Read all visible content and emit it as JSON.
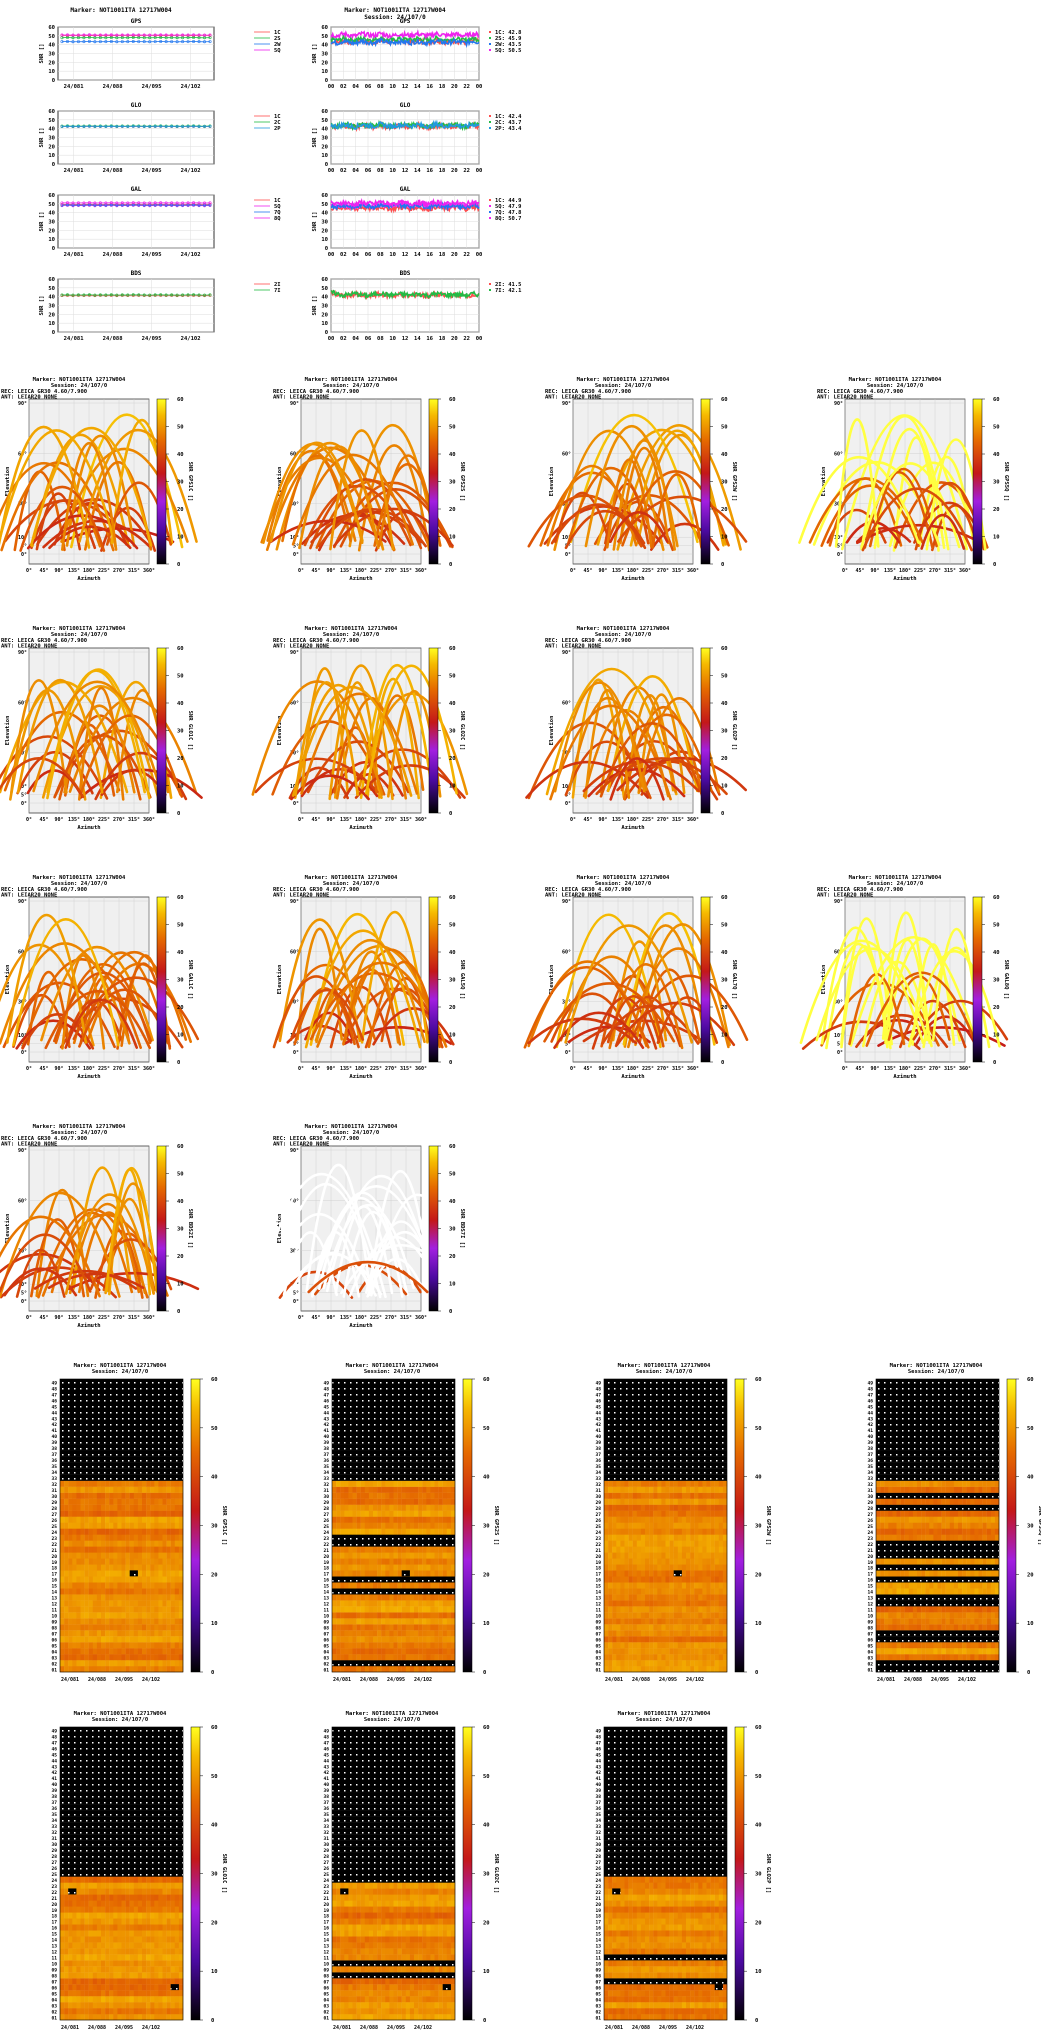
{
  "marker_title": "Marker: NOT1001ITA 12717W004",
  "session_title": "Session: 24/107/0",
  "receiver_line": "REC: LEICA GR30          4.60/7.900",
  "antenna_line": "ANT: LEIAR20          NONE",
  "ts_xticks": [
    "24/081",
    "24/088",
    "24/095",
    "24/102"
  ],
  "daily_xticks": [
    "00",
    "02",
    "04",
    "06",
    "08",
    "10",
    "12",
    "14",
    "16",
    "18",
    "20",
    "22",
    "00"
  ],
  "snr_label": "SNR []",
  "snr_yticks": [
    "0",
    "10",
    "20",
    "30",
    "40",
    "50",
    "60"
  ],
  "elev_yticks": [
    "90°",
    "60°",
    "30°",
    "10°",
    "5°",
    "0°"
  ],
  "az_xticks": [
    "0°",
    "45°",
    "90°",
    "135°",
    "180°",
    "225°",
    "270°",
    "315°",
    "360°"
  ],
  "az_label": "Azimuth",
  "elev_label": "Elevation",
  "cbar_ticks": [
    "0",
    "10",
    "20",
    "30",
    "40",
    "50",
    "60"
  ],
  "colors": {
    "c1C": "#ff4d4d",
    "c2S": "#22bb44",
    "c2W": "#2277ee",
    "c5Q": "#ee22ee",
    "c2C": "#22bb44",
    "c2P": "#2299dd",
    "c7Q": "#2277ee",
    "c2I": "#ff4d4d",
    "c7I": "#22bb44"
  },
  "chart_data": [
    {
      "type": "line",
      "title": "GPS",
      "kind": "timeseries",
      "ylim": [
        0,
        60
      ],
      "series": [
        {
          "name": "1C",
          "values": [
            50.5,
            50.3,
            50.6,
            50.4,
            50.5,
            50.2,
            50.6,
            50.4,
            50.5,
            50.3,
            50.6,
            50.4,
            50.5,
            50.3,
            50.4,
            50.5,
            50.6,
            50.4,
            50.3,
            50.5,
            50.4,
            50.6,
            50.5,
            50.4,
            50.3,
            50.5,
            50.6,
            50.4
          ]
        },
        {
          "name": "2S",
          "values": [
            47.9,
            48.1,
            47.8,
            48.0,
            47.9,
            48.2,
            47.8,
            48.0,
            47.9,
            48.1,
            47.8,
            48.0,
            47.9,
            48.1,
            48.0,
            47.9,
            47.8,
            48.0,
            48.1,
            47.9,
            48.0,
            47.8,
            47.9,
            48.0,
            48.1,
            47.9,
            47.8,
            48.0
          ]
        },
        {
          "name": "2W",
          "values": [
            43.4,
            43.6,
            43.3,
            43.5,
            43.4,
            43.7,
            43.3,
            43.5,
            43.4,
            43.6,
            43.3,
            43.5,
            43.4,
            43.6,
            43.5,
            43.4,
            43.3,
            43.5,
            43.6,
            43.4,
            43.5,
            43.3,
            43.4,
            43.5,
            43.6,
            43.4,
            43.3,
            43.5
          ]
        },
        {
          "name": "5Q",
          "values": [
            50.9,
            51.1,
            50.8,
            51.0,
            50.9,
            51.2,
            50.8,
            51.0,
            50.9,
            51.1,
            50.8,
            51.0,
            50.9,
            51.1,
            51.0,
            50.9,
            50.8,
            51.0,
            51.1,
            50.9,
            51.0,
            50.8,
            50.9,
            51.0,
            51.1,
            50.9,
            50.8,
            51.0
          ]
        }
      ]
    },
    {
      "type": "line",
      "title": "GPS",
      "kind": "daily",
      "ylim": [
        0,
        60
      ],
      "series": [
        {
          "name": "1C",
          "values": [
            44.0,
            42.5,
            44.5,
            43.0,
            42.0,
            44.8,
            43.5,
            42.8,
            45.0,
            43.2,
            42.6,
            44.2,
            43.8,
            42.9,
            44.6,
            43.1,
            42.4,
            44.9,
            43.6,
            42.7,
            44.3,
            43.0,
            42.5,
            44.7,
            43.4
          ]
        },
        {
          "name": "2S",
          "values": [
            46.5,
            45.0,
            47.0,
            45.5,
            44.8,
            47.2,
            45.9,
            45.2,
            47.5,
            45.6,
            45.0,
            46.8,
            46.2,
            45.3,
            47.1,
            45.7,
            44.9,
            47.4,
            46.0,
            45.1,
            46.9,
            45.4,
            45.0,
            47.3,
            45.9
          ]
        },
        {
          "name": "2W",
          "values": [
            43.0,
            41.8,
            44.0,
            42.3,
            41.5,
            44.2,
            42.8,
            42.0,
            44.5,
            42.5,
            41.9,
            43.8,
            43.1,
            42.2,
            44.1,
            42.6,
            41.7,
            44.4,
            42.9,
            42.0,
            43.9,
            42.4,
            41.8,
            44.3,
            42.7
          ]
        },
        {
          "name": "5Q",
          "values": [
            51.5,
            50.0,
            52.3,
            50.6,
            49.8,
            52.5,
            51.0,
            50.2,
            52.8,
            50.7,
            50.0,
            52.0,
            51.3,
            50.4,
            52.4,
            50.8,
            49.9,
            52.6,
            51.1,
            50.3,
            52.1,
            50.6,
            50.1,
            52.5,
            51.0
          ]
        }
      ],
      "legend": [
        "1C: 42.8",
        "2S: 45.9",
        "2W: 43.5",
        "5Q: 50.5"
      ]
    },
    {
      "type": "line",
      "title": "GLO",
      "kind": "timeseries",
      "ylim": [
        0,
        60
      ],
      "series": [
        {
          "name": "1C",
          "values": [
            42.4,
            42.6,
            42.3,
            42.5,
            42.4,
            42.7,
            42.3,
            42.5,
            42.4,
            42.6,
            42.3,
            42.5,
            42.4,
            42.6,
            42.5,
            42.4,
            42.3,
            42.5,
            42.6,
            42.4,
            42.5,
            42.3,
            42.4,
            42.5,
            42.6,
            42.4,
            42.3,
            42.5
          ]
        },
        {
          "name": "2C",
          "values": [
            42.9,
            43.1,
            42.8,
            43.0,
            42.9,
            43.2,
            42.8,
            43.0,
            42.9,
            43.1,
            42.8,
            43.0,
            42.9,
            43.1,
            43.0,
            42.9,
            42.8,
            43.0,
            43.1,
            42.9,
            43.0,
            42.8,
            42.9,
            43.0,
            43.1,
            42.9,
            42.8,
            43.0
          ]
        },
        {
          "name": "2P",
          "values": [
            42.5,
            42.7,
            42.4,
            42.6,
            42.5,
            42.8,
            42.4,
            42.6,
            42.5,
            42.7,
            42.4,
            42.6,
            42.5,
            42.7,
            42.6,
            42.5,
            42.4,
            42.6,
            42.7,
            42.5,
            42.6,
            42.4,
            42.5,
            42.6,
            42.7,
            42.5,
            42.4,
            42.6
          ]
        }
      ]
    },
    {
      "type": "line",
      "title": "GLO",
      "kind": "daily",
      "ylim": [
        0,
        60
      ],
      "series": [
        {
          "name": "1C",
          "values": [
            43.0,
            41.5,
            43.8,
            42.2,
            41.0,
            44.0,
            42.6,
            41.8,
            44.3,
            42.3,
            41.6,
            43.5,
            42.9,
            41.9,
            43.9,
            42.4,
            41.3,
            44.2,
            42.7,
            41.7,
            43.6,
            42.1,
            41.5,
            44.1,
            42.5
          ]
        },
        {
          "name": "2C",
          "values": [
            44.0,
            42.6,
            44.8,
            43.3,
            42.1,
            45.0,
            43.7,
            42.9,
            45.3,
            43.4,
            42.7,
            44.5,
            44.0,
            43.0,
            44.9,
            43.5,
            42.4,
            45.2,
            43.8,
            42.8,
            44.6,
            43.2,
            42.6,
            45.1,
            43.6
          ]
        },
        {
          "name": "2P",
          "values": [
            43.8,
            42.4,
            44.6,
            43.1,
            41.9,
            44.8,
            43.5,
            42.7,
            45.1,
            43.2,
            42.5,
            44.3,
            43.8,
            42.8,
            44.7,
            43.3,
            42.2,
            45.0,
            43.6,
            42.6,
            44.4,
            43.0,
            42.4,
            44.9,
            43.4
          ]
        }
      ],
      "legend": [
        "1C: 42.4",
        "2C: 43.7",
        "2P: 43.4"
      ]
    },
    {
      "type": "line",
      "title": "GAL",
      "kind": "timeseries",
      "ylim": [
        0,
        60
      ],
      "series": [
        {
          "name": "1C",
          "values": [
            49.3,
            49.5,
            49.2,
            49.4,
            49.3,
            49.6,
            49.2,
            49.4,
            49.3,
            49.5,
            49.2,
            49.4,
            49.3,
            49.5,
            49.4,
            49.3,
            49.2,
            49.4,
            49.5,
            49.3,
            49.4,
            49.2,
            49.3,
            49.4,
            49.5,
            49.3,
            49.2,
            49.4
          ]
        },
        {
          "name": "5Q",
          "values": [
            48.0,
            48.2,
            47.9,
            48.1,
            48.0,
            48.3,
            47.9,
            48.1,
            48.0,
            48.2,
            47.9,
            48.1,
            48.0,
            48.2,
            48.1,
            48.0,
            47.9,
            48.1,
            48.2,
            48.0,
            48.1,
            47.9,
            48.0,
            48.1,
            48.2,
            48.0,
            47.9,
            48.1
          ]
        },
        {
          "name": "7Q",
          "values": [
            48.6,
            48.8,
            48.5,
            48.7,
            48.6,
            48.9,
            48.5,
            48.7,
            48.6,
            48.8,
            48.5,
            48.7,
            48.6,
            48.8,
            48.7,
            48.6,
            48.5,
            48.7,
            48.8,
            48.6,
            48.7,
            48.5,
            48.6,
            48.7,
            48.8,
            48.6,
            48.5,
            48.7
          ]
        },
        {
          "name": "8Q",
          "values": [
            51.0,
            51.2,
            50.9,
            51.1,
            51.0,
            51.3,
            50.9,
            51.1,
            51.0,
            51.2,
            50.9,
            51.1,
            51.0,
            51.2,
            51.1,
            51.0,
            50.9,
            51.1,
            51.2,
            51.0,
            51.1,
            50.9,
            51.0,
            51.1,
            51.2,
            51.0,
            50.9,
            51.1
          ]
        }
      ]
    },
    {
      "type": "line",
      "title": "GAL",
      "kind": "daily",
      "ylim": [
        0,
        60
      ],
      "series": [
        {
          "name": "1C",
          "values": [
            45.5,
            44.0,
            46.2,
            44.8,
            43.7,
            46.5,
            45.1,
            44.4,
            46.8,
            44.9,
            44.2,
            46.0,
            45.4,
            44.5,
            46.4,
            45.0,
            43.9,
            46.7,
            45.2,
            44.3,
            46.1,
            44.7,
            44.1,
            46.6,
            45.0
          ]
        },
        {
          "name": "5Q",
          "values": [
            48.5,
            47.0,
            49.3,
            47.7,
            46.6,
            49.5,
            48.1,
            47.3,
            49.8,
            47.9,
            47.2,
            49.0,
            48.4,
            47.5,
            49.4,
            48.0,
            46.9,
            49.7,
            48.2,
            47.4,
            49.1,
            47.6,
            47.1,
            49.6,
            48.0
          ]
        },
        {
          "name": "7Q",
          "values": [
            48.0,
            46.5,
            48.8,
            47.2,
            46.1,
            49.0,
            47.6,
            46.8,
            49.3,
            47.4,
            46.7,
            48.5,
            47.9,
            47.0,
            48.9,
            47.5,
            46.4,
            49.2,
            47.7,
            46.9,
            48.6,
            47.1,
            46.6,
            49.1,
            47.5
          ]
        },
        {
          "name": "8Q",
          "values": [
            51.0,
            49.6,
            51.8,
            50.2,
            49.2,
            52.0,
            50.6,
            49.9,
            52.3,
            50.4,
            49.8,
            51.5,
            50.9,
            50.0,
            51.9,
            50.5,
            49.4,
            52.2,
            50.7,
            49.9,
            51.6,
            50.1,
            49.7,
            52.1,
            50.5
          ]
        }
      ],
      "legend": [
        "1C: 44.9",
        "5Q: 47.9",
        "7Q: 47.8",
        "8Q: 50.7"
      ]
    },
    {
      "type": "line",
      "title": "BDS",
      "kind": "timeseries",
      "ylim": [
        0,
        60
      ],
      "series": [
        {
          "name": "2I",
          "values": [
            41.3,
            41.5,
            41.2,
            41.4,
            41.3,
            41.6,
            41.2,
            41.4,
            41.3,
            41.5,
            41.2,
            41.4,
            41.3,
            41.5,
            41.4,
            41.3,
            41.2,
            41.4,
            41.5,
            41.3,
            41.4,
            41.2,
            41.3,
            41.4,
            41.5,
            41.3,
            41.2,
            41.4
          ]
        },
        {
          "name": "7I",
          "values": [
            41.9,
            42.1,
            41.8,
            42.0,
            41.9,
            42.2,
            41.8,
            42.0,
            41.9,
            42.1,
            41.8,
            42.0,
            41.9,
            42.1,
            42.0,
            41.9,
            41.8,
            42.0,
            42.1,
            41.9,
            42.0,
            41.8,
            41.9,
            42.0,
            42.1,
            41.9,
            41.8,
            42.0
          ]
        }
      ]
    },
    {
      "type": "line",
      "title": "BDS",
      "kind": "daily",
      "ylim": [
        0,
        60
      ],
      "series": [
        {
          "name": "2I",
          "values": [
            44.0,
            42.2,
            40.5,
            41.6,
            42.8,
            41.0,
            40.2,
            41.8,
            43.0,
            41.3,
            40.8,
            42.1,
            41.5,
            40.6,
            42.4,
            41.2,
            40.4,
            42.6,
            41.7,
            40.9,
            42.0,
            41.1,
            40.7,
            42.3,
            41.4
          ]
        },
        {
          "name": "7I",
          "values": [
            45.0,
            43.1,
            41.5,
            42.4,
            43.6,
            41.9,
            41.0,
            42.6,
            43.9,
            42.2,
            41.7,
            43.0,
            42.3,
            41.5,
            43.2,
            42.1,
            41.3,
            43.5,
            42.5,
            41.8,
            42.9,
            41.9,
            41.6,
            43.1,
            42.2
          ]
        }
      ],
      "legend": [
        "2I: 41.5",
        "7I: 42.1"
      ]
    }
  ],
  "skyplot_labels": [
    "SNR GPS1C []",
    "SNR GPS2S []",
    "SNR GPS2W []",
    "SNR GPS5Q []",
    "SNR GLO1C []",
    "SNR GLO2C []",
    "SNR GLO2P []",
    "SNR GAL1C []",
    "SNR GAL5Q []",
    "SNR GAL7Q []",
    "SNR GAL8Q []",
    "SNR BDS2I []",
    "SNR BDS7I []"
  ],
  "prn_labels": [
    "SNR GPS1C []",
    "SNR GPS2S []",
    "SNR GPS2W []",
    "SNR GPS5Q []",
    "SNR GLO1C []",
    "SNR GLO2C []",
    "SNR GLO2P []"
  ]
}
